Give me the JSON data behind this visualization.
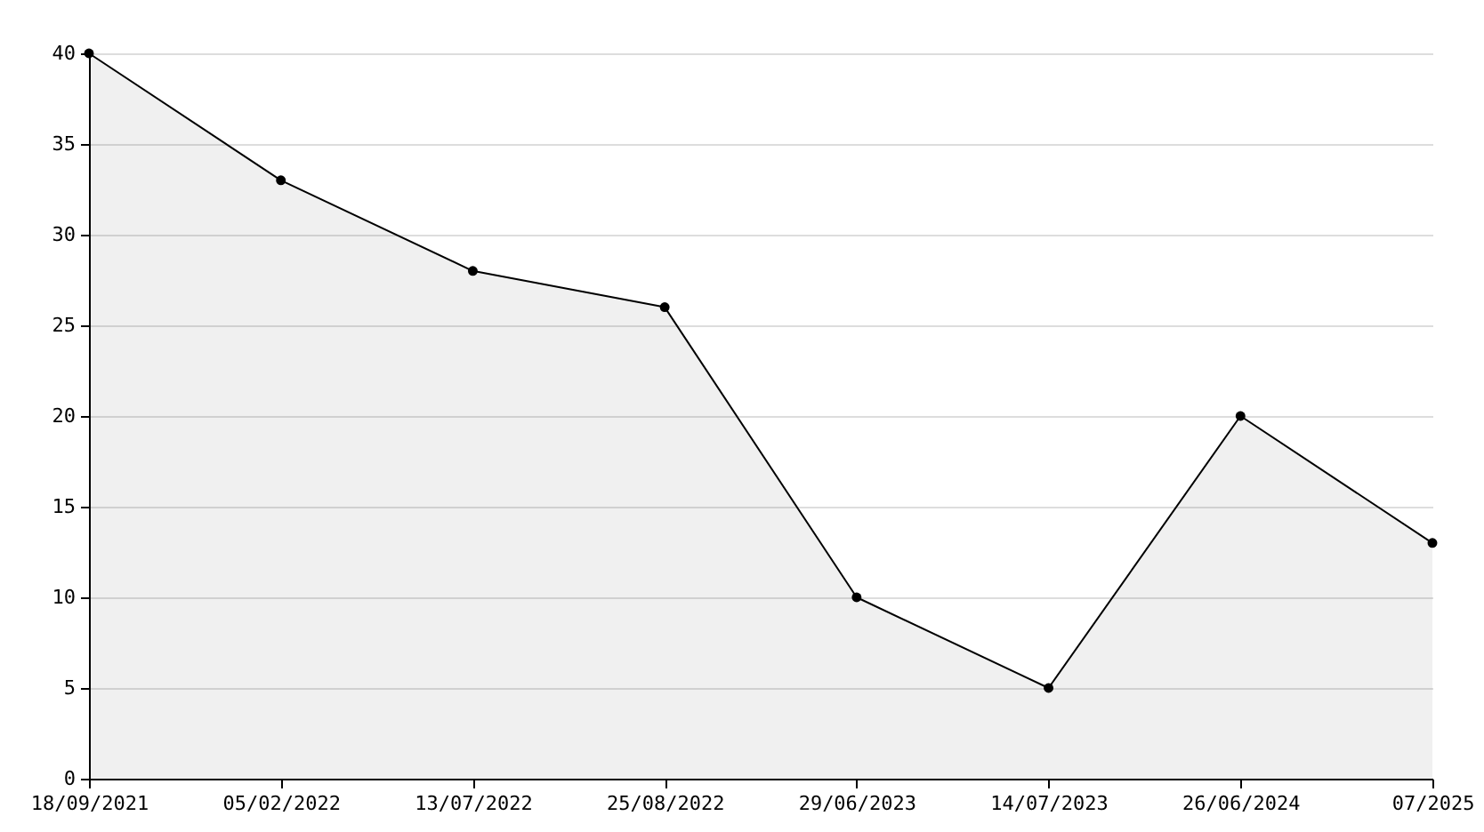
{
  "chart_data": {
    "type": "area",
    "categories": [
      "18/09/2021",
      "05/02/2022",
      "13/07/2022",
      "25/08/2022",
      "29/06/2023",
      "14/07/2023",
      "26/06/2024",
      "07/2025"
    ],
    "series": [
      {
        "color": "#000000",
        "values": [
          40,
          33,
          28,
          26,
          10,
          5,
          20,
          13
        ]
      }
    ],
    "ylim": [
      0,
      40
    ],
    "yticks": [
      0,
      5,
      10,
      15,
      20,
      25,
      30,
      35,
      40
    ],
    "grid": "y",
    "marker": "circle",
    "line_style": "solid",
    "legend": false
  }
}
